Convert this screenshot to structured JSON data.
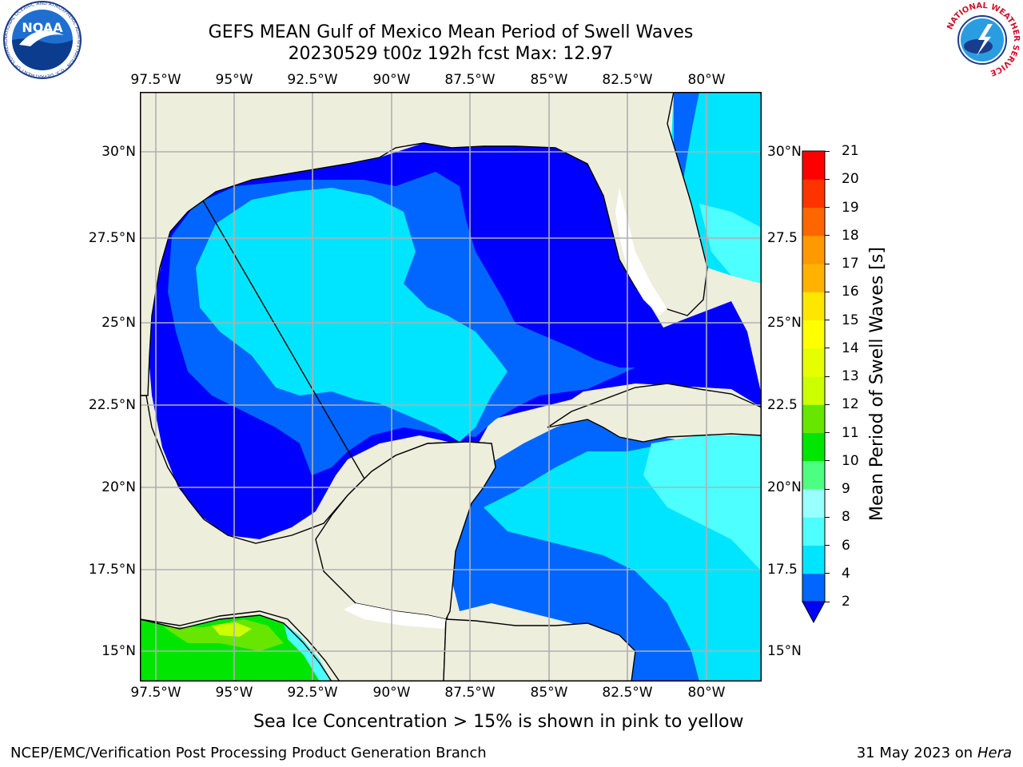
{
  "header": {
    "title_line1": "GEFS MEAN Gulf of Mexico Mean Period of Swell Waves",
    "title_line2": "20230529 t00z 192h fcst   Max: 12.97"
  },
  "logos": {
    "noaa_text": "NOAA",
    "noaa_ring_text": "NATIONAL OCEANIC AND ATMOSPHERIC ADMINISTRATION · U.S. DEPARTMENT OF COMMERCE",
    "nws_ring_text": "NATIONAL WEATHER SERVICE"
  },
  "map": {
    "lon_labels": [
      "97.5°W",
      "95°W",
      "92.5°W",
      "90°W",
      "87.5°W",
      "85°W",
      "82.5°W",
      "80°W"
    ],
    "lat_labels_left": [
      "30°N",
      "27.5°N",
      "25°N",
      "22.5°N",
      "20°N",
      "17.5°N",
      "15°N"
    ],
    "lat_labels_right": [
      "30°N",
      "27.5",
      "25°N",
      "22.5",
      "20°N",
      "17.5",
      "15°N"
    ],
    "colors": {
      "land": "#eeeedd",
      "ocean_missing": "#ffffff",
      "coast": "#000000",
      "grid": "#b0b0b0"
    }
  },
  "colorbar": {
    "label": "Mean Period of Swell Waves [s]",
    "ticks": [
      "2",
      "4",
      "6",
      "8",
      "9",
      "10",
      "11",
      "12",
      "13",
      "14",
      "15",
      "16",
      "17",
      "18",
      "19",
      "20",
      "21"
    ],
    "colors": [
      "#0066ff",
      "#00e5ff",
      "#4dffff",
      "#99ffff",
      "#4dff80",
      "#00e600",
      "#66e600",
      "#ccff00",
      "#e6ff00",
      "#ffff00",
      "#ffe600",
      "#ffb300",
      "#ff9900",
      "#ff6600",
      "#ff3300",
      "#ff0000"
    ],
    "under_color": "#0000ff"
  },
  "notes": {
    "sea_ice": "Sea Ice Concentration > 15% is shown in pink to yellow",
    "credit": "NCEP/EMC/Verification Post Processing Product Generation Branch",
    "date": "31 May 2023 on",
    "machine": "Hera"
  }
}
